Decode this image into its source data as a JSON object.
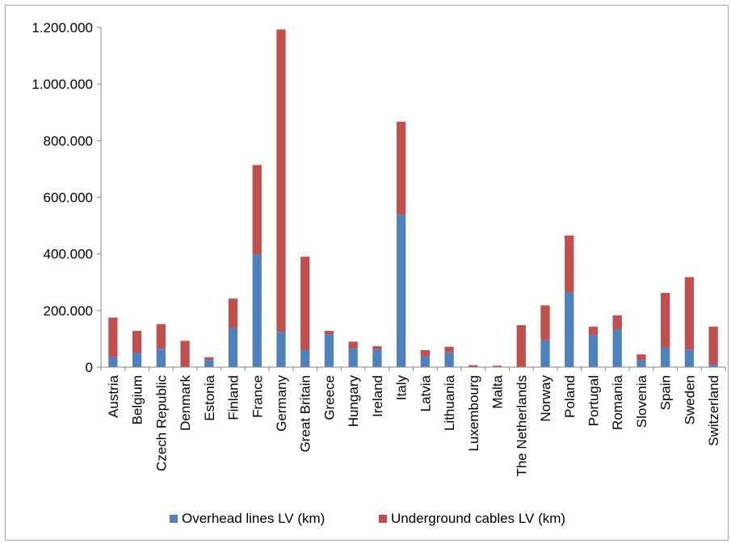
{
  "chart_data": {
    "type": "bar",
    "stacked": true,
    "categories": [
      "Austria",
      "Belgium",
      "Czech Republic",
      "Denmark",
      "Estonia",
      "Finland",
      "France",
      "Germany",
      "Great Britain",
      "Greece",
      "Hungary",
      "Ireland",
      "Italy",
      "Latvia",
      "Lithuania",
      "Luxembourg",
      "Malta",
      "The Netherlands",
      "Norway",
      "Poland",
      "Portugal",
      "Romania",
      "Slovenia",
      "Spain",
      "Sweden",
      "Switzerland"
    ],
    "series": [
      {
        "name": "Overhead lines LV (km)",
        "color": "#4f81bd",
        "values": [
          35000,
          50000,
          65000,
          0,
          25000,
          138000,
          398000,
          125000,
          60000,
          115000,
          65000,
          62000,
          538000,
          38000,
          52000,
          0,
          0,
          0,
          95000,
          265000,
          113000,
          133000,
          25000,
          70000,
          62000,
          10000
        ]
      },
      {
        "name": "Underground cables LV (km)",
        "color": "#c0504d",
        "values": [
          140000,
          78000,
          87000,
          93000,
          10000,
          104000,
          316000,
          1068000,
          330000,
          13000,
          25000,
          12000,
          329000,
          22000,
          20000,
          7000,
          5000,
          148000,
          123000,
          200000,
          30000,
          50000,
          20000,
          192000,
          256000,
          133000
        ]
      }
    ],
    "yticks": [
      "0",
      "200.000",
      "400.000",
      "600.000",
      "800.000",
      "1.000.000",
      "1.200.000"
    ],
    "ylim": [
      0,
      1200000
    ],
    "grid": false,
    "legend_position": "bottom"
  }
}
